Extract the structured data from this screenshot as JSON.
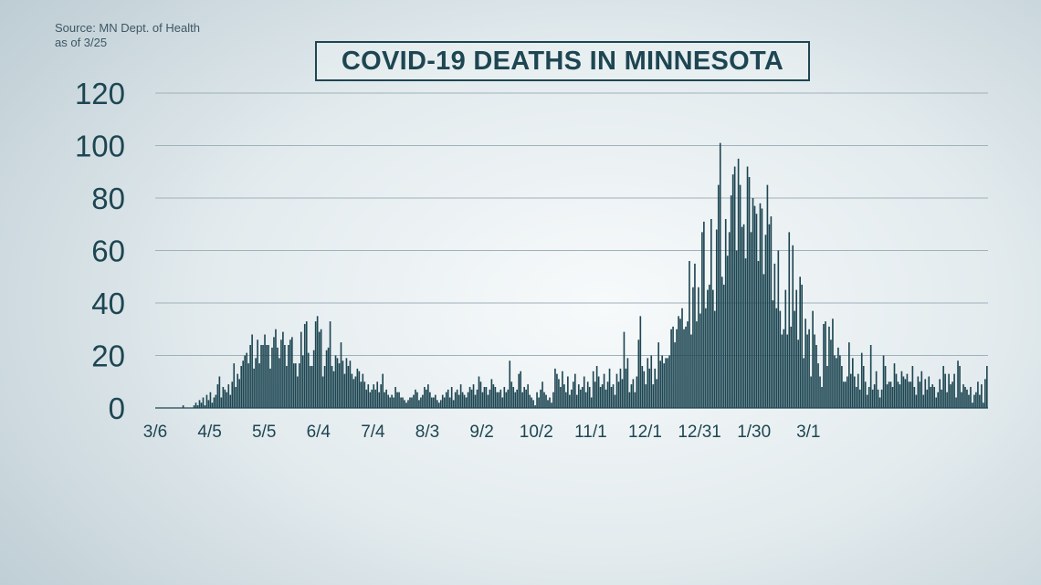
{
  "source": {
    "line1": "Source: MN Dept. of Health",
    "line2": "as of 3/25"
  },
  "colors": {
    "bar": "#1d4652",
    "grid": "#9fb1b9",
    "text": "#1d4652"
  },
  "chart_data": {
    "type": "bar",
    "title": "COVID-19 DEATHS IN MINNESOTA",
    "xlabel": "",
    "ylabel": "",
    "ylim": [
      0,
      120
    ],
    "yticks": [
      0,
      20,
      40,
      60,
      80,
      100,
      120
    ],
    "grid": true,
    "x_start": "3/6",
    "xticks": [
      "3/6",
      "4/5",
      "5/5",
      "6/4",
      "7/4",
      "8/3",
      "9/2",
      "10/2",
      "11/1",
      "12/1",
      "12/31",
      "1/30",
      "3/1"
    ],
    "xtick_interval_days": 30,
    "values": [
      0,
      0,
      0,
      0,
      0,
      0,
      0,
      0,
      0,
      0,
      0,
      0,
      0,
      0,
      0,
      1,
      0,
      0,
      0,
      0,
      0,
      1,
      2,
      1,
      3,
      2,
      4,
      1,
      5,
      3,
      6,
      2,
      4,
      5,
      9,
      12,
      4,
      8,
      7,
      6,
      9,
      5,
      10,
      17,
      8,
      13,
      11,
      16,
      18,
      20,
      21,
      17,
      24,
      28,
      15,
      19,
      26,
      17,
      24,
      24,
      28,
      24,
      24,
      15,
      23,
      27,
      30,
      23,
      19,
      26,
      29,
      24,
      16,
      24,
      26,
      27,
      17,
      17,
      12,
      17,
      29,
      20,
      32,
      33,
      21,
      16,
      16,
      22,
      33,
      35,
      29,
      30,
      12,
      16,
      22,
      23,
      33,
      16,
      14,
      20,
      19,
      17,
      25,
      18,
      13,
      19,
      16,
      18,
      13,
      11,
      12,
      15,
      14,
      10,
      13,
      10,
      7,
      9,
      6,
      7,
      9,
      7,
      10,
      6,
      9,
      13,
      6,
      7,
      5,
      4,
      5,
      4,
      8,
      6,
      6,
      4,
      4,
      3,
      2,
      3,
      4,
      4,
      5,
      7,
      6,
      3,
      4,
      5,
      8,
      7,
      9,
      6,
      4,
      4,
      5,
      3,
      2,
      3,
      5,
      4,
      6,
      7,
      4,
      8,
      3,
      6,
      7,
      5,
      9,
      6,
      5,
      4,
      6,
      8,
      7,
      9,
      5,
      7,
      12,
      10,
      6,
      8,
      8,
      5,
      7,
      11,
      9,
      8,
      6,
      6,
      7,
      4,
      8,
      6,
      7,
      18,
      10,
      8,
      6,
      7,
      13,
      14,
      6,
      8,
      7,
      9,
      5,
      4,
      3,
      1,
      6,
      4,
      7,
      10,
      6,
      5,
      3,
      4,
      2,
      6,
      15,
      13,
      11,
      8,
      14,
      9,
      6,
      12,
      5,
      7,
      10,
      13,
      5,
      9,
      7,
      8,
      12,
      6,
      10,
      8,
      4,
      14,
      10,
      16,
      12,
      8,
      9,
      13,
      7,
      10,
      15,
      8,
      9,
      5,
      13,
      10,
      15,
      11,
      29,
      15,
      19,
      6,
      9,
      11,
      6,
      12,
      26,
      35,
      16,
      14,
      9,
      19,
      15,
      20,
      9,
      15,
      11,
      25,
      18,
      20,
      17,
      19,
      19,
      20,
      30,
      31,
      25,
      30,
      35,
      34,
      38,
      30,
      31,
      33,
      56,
      28,
      46,
      55,
      33,
      46,
      36,
      67,
      71,
      38,
      45,
      47,
      72,
      45,
      37,
      68,
      85,
      101,
      50,
      47,
      72,
      58,
      67,
      81,
      89,
      92,
      60,
      95,
      85,
      69,
      70,
      57,
      92,
      88,
      67,
      80,
      77,
      74,
      56,
      78,
      76,
      51,
      66,
      85,
      70,
      73,
      41,
      55,
      38,
      60,
      37,
      28,
      30,
      45,
      28,
      67,
      31,
      62,
      37,
      45,
      26,
      50,
      47,
      19,
      34,
      28,
      30,
      12,
      37,
      28,
      24,
      17,
      12,
      8,
      32,
      33,
      16,
      31,
      26,
      34,
      20,
      19,
      23,
      20,
      16,
      10,
      10,
      12,
      25,
      13,
      19,
      12,
      8,
      13,
      7,
      21,
      16,
      10,
      5,
      8,
      24,
      7,
      9,
      14,
      7,
      4,
      7,
      20,
      16,
      9,
      10,
      10,
      8,
      17,
      13,
      10,
      9,
      14,
      12,
      11,
      13,
      10,
      10,
      16,
      8,
      5,
      12,
      10,
      14,
      5,
      11,
      7,
      12,
      8,
      9,
      8,
      4,
      6,
      11,
      7,
      16,
      13,
      6,
      13,
      9,
      10,
      13,
      4,
      18,
      16,
      6,
      9,
      8,
      7,
      5,
      8,
      2,
      5,
      6,
      10,
      5,
      9,
      2,
      11,
      16
    ]
  }
}
